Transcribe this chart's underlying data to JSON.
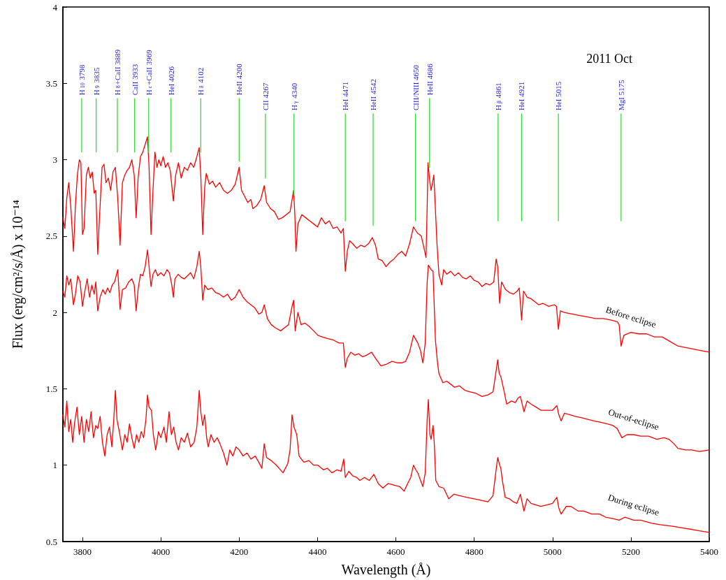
{
  "chart_data": {
    "type": "line",
    "xlabel": "Wavelength (Å)",
    "ylabel": "Flux (erg/cm²/s/Å) x 10⁻¹⁴",
    "xlim": [
      3750,
      5400
    ],
    "xticks": [
      3800,
      4000,
      4200,
      4400,
      4600,
      4800,
      5000,
      5200,
      5400
    ],
    "ylim": [
      0.5,
      4
    ],
    "yticks": [
      0.5,
      1,
      1.5,
      2,
      2.5,
      3,
      3.5,
      4
    ],
    "grid": false,
    "legend": false,
    "marker": "none",
    "line_style": "solid",
    "annotations": [
      "2011 Oct",
      {
        "text": "H$_{10}$ 3798",
        "x": 3798,
        "y": 3.4
      },
      {
        "text": "H$_{9}$ 3835",
        "x": 3835,
        "y": 3.4
      },
      {
        "text": "H$_{8}$+CaII 3889",
        "x": 3889,
        "y": 3.4
      },
      {
        "text": "CaII 3933",
        "x": 3933,
        "y": 3.4
      },
      {
        "text": "H$_{ε}$+CaII 3969",
        "x": 3969,
        "y": 3.4
      },
      {
        "text": "HeI 4026",
        "x": 4026,
        "y": 3.4
      },
      {
        "text": "H$_{δ}$ 4102",
        "x": 4102,
        "y": 3.4
      },
      {
        "text": "HeII 4200",
        "x": 4200,
        "y": 3.4
      },
      {
        "text": "CII 4267",
        "x": 4267,
        "y": 3.3
      },
      {
        "text": "H$_{γ}$ 4340",
        "x": 4340,
        "y": 3.3
      },
      {
        "text": "HeI 4471",
        "x": 4471,
        "y": 3.3
      },
      {
        "text": "HeII 4542",
        "x": 4542,
        "y": 3.3
      },
      {
        "text": "CIII/NIII 4650",
        "x": 4650,
        "y": 3.3
      },
      {
        "text": "HeII 4686",
        "x": 4686,
        "y": 3.4
      },
      {
        "text": "H$_{β}$ 4861",
        "x": 4861,
        "y": 3.3
      },
      {
        "text": "HeI 4921",
        "x": 4921,
        "y": 3.3
      },
      {
        "text": "HeI 5015",
        "x": 5015,
        "y": 3.3
      },
      {
        "text": "MgI 5175",
        "x": 5175,
        "y": 3.3
      }
    ],
    "series": [
      {
        "name": "Before eclipse",
        "color": "#ff0000",
        "x": [
          3750,
          3755,
          3760,
          3765,
          3770,
          3777,
          3782,
          3787,
          3792,
          3796,
          3800,
          3804,
          3810,
          3815,
          3820,
          3825,
          3830,
          3834,
          3839,
          3844,
          3850,
          3855,
          3860,
          3866,
          3872,
          3878,
          3884,
          3890,
          3896,
          3902,
          3908,
          3914,
          3920,
          3926,
          3932,
          3937,
          3942,
          3948,
          3954,
          3960,
          3966,
          3970,
          3975,
          3980,
          3985,
          3990,
          3995,
          4000,
          4006,
          4012,
          4018,
          4024,
          4032,
          4038,
          4045,
          4052,
          4060,
          4068,
          4076,
          4084,
          4092,
          4098,
          4102,
          4107,
          4112,
          4116,
          4124,
          4132,
          4140,
          4150,
          4160,
          4170,
          4180,
          4190,
          4200,
          4206,
          4214,
          4222,
          4230,
          4235,
          4245,
          4255,
          4264,
          4270,
          4280,
          4290,
          4300,
          4310,
          4320,
          4330,
          4339,
          4342,
          4345,
          4350,
          4360,
          4370,
          4380,
          4390,
          4400,
          4410,
          4420,
          4430,
          4440,
          4450,
          4460,
          4466,
          4471,
          4476,
          4482,
          4490,
          4500,
          4510,
          4520,
          4530,
          4540,
          4548,
          4555,
          4565,
          4575,
          4585,
          4595,
          4605,
          4615,
          4625,
          4635,
          4645,
          4655,
          4665,
          4672,
          4677,
          4680,
          4682,
          4687,
          4690,
          4697,
          4705,
          4710,
          4717,
          4722,
          4730,
          4740,
          4750,
          4760,
          4770,
          4780,
          4790,
          4800,
          4810,
          4820,
          4830,
          4840,
          4850,
          4856,
          4860,
          4865,
          4870,
          4880,
          4890,
          4900,
          4910,
          4915,
          4921,
          4926,
          4935,
          4945,
          4955,
          4965,
          4975,
          4990,
          5005,
          5010,
          5015,
          5020,
          5030,
          5050,
          5070,
          5090,
          5110,
          5130,
          5150,
          5165,
          5170,
          5175,
          5182,
          5200,
          5220,
          5240,
          5260,
          5280,
          5300,
          5320,
          5340,
          5360,
          5380,
          5400
        ],
        "values": [
          2.62,
          2.55,
          2.75,
          2.85,
          2.7,
          2.4,
          2.7,
          2.9,
          3.0,
          2.98,
          2.51,
          2.55,
          2.9,
          2.95,
          2.88,
          2.92,
          2.78,
          2.8,
          2.38,
          2.65,
          2.95,
          2.97,
          2.85,
          2.88,
          2.8,
          2.92,
          2.95,
          2.75,
          2.44,
          2.85,
          2.9,
          2.93,
          2.95,
          3.0,
          2.9,
          2.62,
          2.88,
          3.02,
          3.05,
          3.1,
          3.15,
          2.95,
          2.51,
          2.8,
          3.05,
          2.95,
          3.0,
          2.96,
          3.02,
          2.95,
          2.98,
          2.93,
          2.73,
          2.9,
          2.98,
          2.88,
          2.95,
          2.93,
          2.98,
          2.95,
          3.02,
          3.08,
          2.9,
          2.51,
          2.82,
          2.91,
          2.84,
          2.86,
          2.82,
          2.85,
          2.8,
          2.78,
          2.8,
          2.84,
          2.95,
          2.8,
          2.76,
          2.72,
          2.74,
          2.68,
          2.7,
          2.74,
          2.83,
          2.72,
          2.68,
          2.66,
          2.61,
          2.62,
          2.64,
          2.66,
          2.8,
          2.65,
          2.4,
          2.58,
          2.64,
          2.62,
          2.6,
          2.58,
          2.56,
          2.62,
          2.58,
          2.6,
          2.55,
          2.56,
          2.52,
          2.55,
          2.27,
          2.4,
          2.47,
          2.45,
          2.42,
          2.44,
          2.43,
          2.45,
          2.49,
          2.44,
          2.35,
          2.34,
          2.3,
          2.33,
          2.35,
          2.38,
          2.4,
          2.37,
          2.45,
          2.56,
          2.52,
          2.5,
          2.42,
          2.36,
          2.7,
          2.98,
          2.85,
          2.8,
          2.9,
          2.45,
          2.25,
          2.18,
          2.28,
          2.25,
          2.27,
          2.24,
          2.26,
          2.23,
          2.22,
          2.24,
          2.21,
          2.2,
          2.17,
          2.19,
          2.18,
          2.2,
          2.35,
          2.3,
          2.06,
          2.2,
          2.15,
          2.13,
          2.12,
          2.14,
          2.16,
          1.95,
          2.14,
          2.1,
          2.09,
          2.07,
          2.05,
          2.06,
          2.04,
          2.05,
          2.04,
          1.89,
          2.01,
          2.0,
          1.99,
          1.98,
          1.97,
          1.96,
          1.96,
          1.95,
          1.94,
          1.92,
          1.78,
          1.85,
          1.87,
          1.86,
          1.86,
          1.84,
          1.84,
          1.81,
          1.78,
          1.77,
          1.76,
          1.75,
          1.74
        ]
      },
      {
        "name": "Out-of-eclipse",
        "color": "#ff0000",
        "x": [
          3750,
          3755,
          3760,
          3765,
          3770,
          3777,
          3782,
          3788,
          3794,
          3800,
          3806,
          3812,
          3818,
          3824,
          3830,
          3834,
          3839,
          3845,
          3852,
          3858,
          3864,
          3870,
          3876,
          3882,
          3890,
          3896,
          3902,
          3910,
          3918,
          3926,
          3932,
          3937,
          3942,
          3948,
          3954,
          3960,
          3966,
          3970,
          3975,
          3980,
          3986,
          3992,
          4000,
          4008,
          4016,
          4022,
          4028,
          4032,
          4036,
          4044,
          4052,
          4060,
          4068,
          4076,
          4084,
          4092,
          4098,
          4102,
          4107,
          4112,
          4120,
          4130,
          4140,
          4150,
          4160,
          4170,
          4180,
          4190,
          4200,
          4210,
          4220,
          4230,
          4240,
          4250,
          4258,
          4264,
          4272,
          4282,
          4292,
          4306,
          4316,
          4326,
          4335,
          4339,
          4343,
          4350,
          4358,
          4368,
          4378,
          4390,
          4401,
          4412,
          4425,
          4440,
          4455,
          4466,
          4471,
          4476,
          4485,
          4495,
          4505,
          4515,
          4525,
          4538,
          4548,
          4562,
          4575,
          4590,
          4605,
          4615,
          4625,
          4635,
          4645,
          4656,
          4663,
          4669,
          4675,
          4680,
          4683,
          4690,
          4695,
          4701,
          4706,
          4710,
          4720,
          4730,
          4740,
          4750,
          4762,
          4776,
          4790,
          4805,
          4820,
          4835,
          4848,
          4855,
          4860,
          4864,
          4868,
          4875,
          4883,
          4895,
          4905,
          4912,
          4918,
          4927,
          4935,
          4945,
          4958,
          4970,
          4985,
          5000,
          5011,
          5016,
          5022,
          5030,
          5045,
          5058,
          5075,
          5090,
          5106,
          5125,
          5140,
          5154,
          5165,
          5177,
          5190,
          5207,
          5225,
          5245,
          5266,
          5285,
          5297,
          5310,
          5320,
          5340,
          5355,
          5375,
          5400
        ],
        "values": [
          2.14,
          2.1,
          2.24,
          2.18,
          2.22,
          2.05,
          2.12,
          2.24,
          2.2,
          2.04,
          2.14,
          2.22,
          2.1,
          2.18,
          2.12,
          2.2,
          2.01,
          2.1,
          2.15,
          2.12,
          2.16,
          2.13,
          2.18,
          2.2,
          2.28,
          2.02,
          2.15,
          2.16,
          2.2,
          2.22,
          2.18,
          2.01,
          2.15,
          2.25,
          2.24,
          2.3,
          2.41,
          2.3,
          2.17,
          2.25,
          2.28,
          2.24,
          2.26,
          2.24,
          2.28,
          2.26,
          2.18,
          2.1,
          2.22,
          2.25,
          2.23,
          2.22,
          2.24,
          2.26,
          2.22,
          2.3,
          2.4,
          2.3,
          2.08,
          2.18,
          2.15,
          2.16,
          2.13,
          2.12,
          2.1,
          2.12,
          2.08,
          2.1,
          2.15,
          2.1,
          2.07,
          2.05,
          2.03,
          1.99,
          2.0,
          2.05,
          1.96,
          1.92,
          1.9,
          1.88,
          1.9,
          1.92,
          2.04,
          2.08,
          1.88,
          2.0,
          1.92,
          1.93,
          1.91,
          1.88,
          1.85,
          1.84,
          1.83,
          1.82,
          1.8,
          1.8,
          1.64,
          1.7,
          1.74,
          1.72,
          1.73,
          1.71,
          1.72,
          1.74,
          1.7,
          1.65,
          1.66,
          1.68,
          1.67,
          1.67,
          1.68,
          1.74,
          1.85,
          1.8,
          1.75,
          1.67,
          1.8,
          2.2,
          2.31,
          2.28,
          2.27,
          1.82,
          1.68,
          1.6,
          1.54,
          1.55,
          1.53,
          1.51,
          1.52,
          1.49,
          1.48,
          1.47,
          1.45,
          1.46,
          1.48,
          1.6,
          1.69,
          1.6,
          1.58,
          1.5,
          1.4,
          1.42,
          1.41,
          1.44,
          1.45,
          1.35,
          1.42,
          1.4,
          1.38,
          1.36,
          1.36,
          1.36,
          1.39,
          1.33,
          1.29,
          1.34,
          1.33,
          1.32,
          1.31,
          1.3,
          1.29,
          1.28,
          1.27,
          1.26,
          1.24,
          1.18,
          1.2,
          1.2,
          1.19,
          1.19,
          1.17,
          1.18,
          1.17,
          1.14,
          1.11,
          1.1,
          1.1,
          1.09,
          1.1
        ]
      },
      {
        "name": "During eclipse",
        "color": "#ff0000",
        "x": [
          3750,
          3755,
          3760,
          3765,
          3770,
          3775,
          3780,
          3786,
          3792,
          3798,
          3804,
          3810,
          3816,
          3822,
          3828,
          3834,
          3839,
          3845,
          3851,
          3857,
          3863,
          3869,
          3875,
          3880,
          3884,
          3888,
          3894,
          3902,
          3908,
          3914,
          3920,
          3926,
          3932,
          3938,
          3944,
          3950,
          3956,
          3962,
          3966,
          3970,
          3976,
          3981,
          3987,
          3994,
          4000,
          4008,
          4014,
          4021,
          4027,
          4033,
          4039,
          4045,
          4052,
          4060,
          4068,
          4076,
          4085,
          4092,
          4098,
          4102,
          4107,
          4112,
          4117,
          4121,
          4128,
          4136,
          4144,
          4151,
          4160,
          4169,
          4176,
          4184,
          4192,
          4200,
          4210,
          4220,
          4230,
          4241,
          4250,
          4258,
          4264,
          4270,
          4282,
          4295,
          4312,
          4324,
          4330,
          4335,
          4340,
          4347,
          4353,
          4365,
          4378,
          4390,
          4401,
          4415,
          4425,
          4437,
          4450,
          4460,
          4467,
          4471,
          4480,
          4490,
          4500,
          4508,
          4520,
          4532,
          4544,
          4555,
          4567,
          4580,
          4595,
          4610,
          4621,
          4630,
          4638,
          4645,
          4651,
          4656,
          4663,
          4669,
          4675,
          4680,
          4683,
          4687,
          4690,
          4695,
          4698,
          4702,
          4710,
          4722,
          4735,
          4748,
          4763,
          4780,
          4800,
          4817,
          4835,
          4848,
          4855,
          4860,
          4865,
          4868,
          4872,
          4879,
          4890,
          4900,
          4909,
          4918,
          4927,
          4935,
          4945,
          4958,
          4970,
          4985,
          5000,
          5011,
          5016,
          5022,
          5035,
          5047,
          5065,
          5080,
          5100,
          5120,
          5135,
          5154,
          5170,
          5185,
          5207,
          5225,
          5254,
          5275,
          5307,
          5330,
          5355,
          5375,
          5400
        ],
        "values": [
          1.33,
          1.25,
          1.42,
          1.22,
          1.3,
          1.15,
          1.28,
          1.38,
          1.2,
          1.32,
          1.15,
          1.3,
          1.22,
          1.35,
          1.18,
          1.26,
          1.24,
          1.32,
          1.15,
          1.06,
          1.2,
          1.25,
          1.12,
          1.3,
          1.49,
          1.3,
          1.22,
          1.1,
          1.2,
          1.15,
          1.27,
          1.18,
          1.11,
          1.2,
          1.15,
          1.22,
          1.18,
          1.3,
          1.46,
          1.38,
          1.36,
          1.2,
          1.1,
          1.22,
          1.18,
          1.25,
          1.15,
          1.35,
          1.2,
          1.25,
          1.15,
          1.1,
          1.18,
          1.15,
          1.21,
          1.12,
          1.15,
          1.25,
          1.49,
          1.35,
          1.26,
          1.33,
          1.18,
          1.12,
          1.2,
          1.15,
          1.18,
          1.14,
          1.08,
          1.0,
          1.1,
          1.06,
          1.12,
          1.1,
          1.06,
          1.08,
          1.04,
          1.06,
          1.02,
          0.98,
          1.14,
          1.05,
          1.03,
          1.0,
          0.95,
          1.01,
          1.1,
          1.33,
          1.25,
          1.2,
          1.06,
          1.02,
          1.03,
          1.0,
          1.0,
          0.97,
          0.98,
          0.95,
          0.97,
          0.96,
          1.04,
          0.92,
          0.96,
          0.93,
          0.92,
          0.9,
          0.92,
          0.9,
          0.94,
          0.88,
          0.85,
          0.88,
          0.87,
          0.86,
          0.83,
          0.88,
          0.92,
          1.0,
          0.97,
          0.95,
          0.9,
          0.86,
          0.95,
          1.3,
          1.43,
          1.2,
          1.17,
          1.26,
          1.15,
          0.9,
          0.86,
          0.85,
          0.78,
          0.81,
          0.8,
          0.79,
          0.78,
          0.77,
          0.76,
          0.8,
          0.95,
          1.05,
          1.0,
          0.98,
          0.9,
          0.79,
          0.78,
          0.76,
          0.75,
          0.81,
          0.7,
          0.78,
          0.75,
          0.74,
          0.73,
          0.74,
          0.75,
          0.79,
          0.72,
          0.68,
          0.73,
          0.73,
          0.7,
          0.7,
          0.68,
          0.68,
          0.66,
          0.65,
          0.64,
          0.66,
          0.64,
          0.64,
          0.62,
          0.61,
          0.6,
          0.59,
          0.58,
          0.57,
          0.56
        ]
      },
      {
        "color": "#33dd33",
        "x": [
          3798,
          3798
        ],
        "values": [
          3.05,
          3.4
        ]
      },
      {
        "color": "#33dd33",
        "x": [
          3835,
          3835
        ],
        "values": [
          3.05,
          3.4
        ]
      },
      {
        "color": "#33dd33",
        "x": [
          3889,
          3889
        ],
        "values": [
          3.05,
          3.4
        ]
      },
      {
        "color": "#33dd33",
        "x": [
          3933,
          3933
        ],
        "values": [
          3.05,
          3.4
        ]
      },
      {
        "color": "#33dd33",
        "x": [
          3969,
          3969
        ],
        "values": [
          3.05,
          3.4
        ]
      },
      {
        "color": "#33dd33",
        "x": [
          4026,
          4026
        ],
        "values": [
          3.05,
          3.4
        ]
      },
      {
        "color": "#33dd33",
        "x": [
          4102,
          4102
        ],
        "values": [
          3.05,
          3.4
        ]
      },
      {
        "color": "#33dd33",
        "x": [
          4200,
          4200
        ],
        "values": [
          2.99,
          3.4
        ]
      },
      {
        "color": "#33dd33",
        "x": [
          4267,
          4267
        ],
        "values": [
          2.88,
          3.3
        ]
      },
      {
        "color": "#33dd33",
        "x": [
          4340,
          4340
        ],
        "values": [
          2.77,
          3.3
        ]
      },
      {
        "color": "#33dd33",
        "x": [
          4471,
          4471
        ],
        "values": [
          2.6,
          3.3
        ]
      },
      {
        "color": "#33dd33",
        "x": [
          4542,
          4542
        ],
        "values": [
          2.57,
          3.3
        ]
      },
      {
        "color": "#33dd33",
        "x": [
          4650,
          4650
        ],
        "values": [
          2.6,
          3.3
        ]
      },
      {
        "color": "#33dd33",
        "x": [
          4686,
          4686
        ],
        "values": [
          2.95,
          3.4
        ]
      },
      {
        "color": "#33dd33",
        "x": [
          4861,
          4861
        ],
        "values": [
          2.6,
          3.3
        ]
      },
      {
        "color": "#33dd33",
        "x": [
          4921,
          4921
        ],
        "values": [
          2.6,
          3.3
        ]
      },
      {
        "color": "#33dd33",
        "x": [
          5015,
          5015
        ],
        "values": [
          2.6,
          3.3
        ]
      },
      {
        "color": "#33dd33",
        "x": [
          5175,
          5175
        ],
        "values": [
          2.6,
          3.3
        ]
      }
    ]
  }
}
